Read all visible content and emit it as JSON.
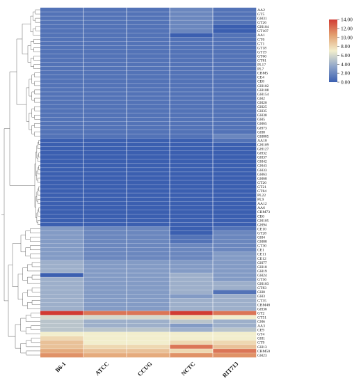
{
  "chart_data": {
    "type": "heatmap",
    "title": "",
    "xlabel": "",
    "ylabel": "",
    "columns": [
      "B6-1",
      "ATCC",
      "CCUG",
      "NCTC",
      "RIT713"
    ],
    "rows": [
      "AA2",
      "GT5",
      "GH31",
      "GT26",
      "GH104",
      "GT107",
      "AA1",
      "GT0",
      "GT1",
      "GT18",
      "GT19",
      "GT60",
      "GT81",
      "PL17",
      "PL7",
      "CBM5",
      "CE4",
      "CE8",
      "GH102",
      "GH108",
      "GH154",
      "GH2",
      "GH20",
      "GH25",
      "GH35",
      "GH38",
      "GH5",
      "GH65",
      "GH73",
      "GH8",
      "GH885",
      "AA10",
      "GH109",
      "GH127",
      "GH32",
      "GH37",
      "GH42",
      "GH43",
      "GH33",
      "GH63",
      "GH68",
      "GT20",
      "GT21",
      "GT84",
      "PL22",
      "PL9",
      "AA12",
      "AA6",
      "CBM73",
      "CE0",
      "GH105",
      "GH94",
      "CE10",
      "GT28",
      "GH4",
      "GH88",
      "GT30",
      "CE1",
      "CE11",
      "CE12",
      "GH77",
      "GH18",
      "GH19",
      "GH24",
      "GT56",
      "GH103",
      "GT83",
      "GH0",
      "GH3",
      "GT35",
      "CBM48",
      "GH36",
      "GT2",
      "GT51",
      "GH6",
      "AA3",
      "CE9",
      "GT4",
      "GH1",
      "GT9",
      "GH13",
      "CBM50",
      "GH23"
    ],
    "values": [
      [
        1,
        1,
        1,
        2,
        1
      ],
      [
        1,
        1,
        1,
        2,
        1
      ],
      [
        1,
        1,
        1,
        2,
        1
      ],
      [
        1,
        1,
        1,
        2,
        1
      ],
      [
        1,
        1,
        1,
        2,
        0
      ],
      [
        1,
        1,
        1,
        2,
        0
      ],
      [
        1,
        1,
        1,
        0,
        1
      ],
      [
        1,
        1,
        1,
        1,
        1
      ],
      [
        1,
        1,
        1,
        1,
        1
      ],
      [
        1,
        1,
        1,
        1,
        1
      ],
      [
        1,
        1,
        1,
        1,
        1
      ],
      [
        1,
        1,
        1,
        1,
        1
      ],
      [
        1,
        1,
        1,
        1,
        1
      ],
      [
        1,
        1,
        1,
        1,
        1
      ],
      [
        1,
        1,
        1,
        1,
        1
      ],
      [
        1,
        1,
        1,
        1,
        1
      ],
      [
        1,
        1,
        1,
        1,
        1
      ],
      [
        1,
        1,
        1,
        1,
        1
      ],
      [
        1,
        1,
        1,
        1,
        1
      ],
      [
        1,
        1,
        1,
        1,
        1
      ],
      [
        1,
        1,
        1,
        1,
        1
      ],
      [
        1,
        1,
        1,
        1,
        1
      ],
      [
        1,
        1,
        1,
        1,
        1
      ],
      [
        1,
        1,
        1,
        1,
        1
      ],
      [
        1,
        1,
        1,
        1,
        1
      ],
      [
        1,
        1,
        1,
        1,
        1
      ],
      [
        1,
        1,
        1,
        1,
        1
      ],
      [
        1,
        1,
        1,
        1,
        1
      ],
      [
        1,
        1,
        1,
        1,
        1
      ],
      [
        1,
        1,
        1,
        1,
        1
      ],
      [
        1,
        1,
        1,
        1,
        2
      ],
      [
        0,
        0,
        0,
        0,
        1
      ],
      [
        0,
        0,
        0,
        0,
        0
      ],
      [
        0,
        0,
        0,
        0,
        0
      ],
      [
        0,
        0,
        0,
        0,
        0
      ],
      [
        0,
        0,
        0,
        0,
        0
      ],
      [
        0,
        0,
        0,
        0,
        0
      ],
      [
        0,
        0,
        0,
        0,
        0
      ],
      [
        0,
        0,
        0,
        0,
        0
      ],
      [
        0,
        0,
        0,
        0,
        0
      ],
      [
        0,
        0,
        0,
        0,
        0
      ],
      [
        0,
        0,
        0,
        0,
        0
      ],
      [
        0,
        0,
        0,
        0,
        0
      ],
      [
        0,
        0,
        0,
        0,
        0
      ],
      [
        0,
        0,
        0,
        0,
        0
      ],
      [
        0,
        0,
        0,
        0,
        0
      ],
      [
        0,
        0,
        0,
        0,
        0
      ],
      [
        0,
        0,
        0,
        0,
        0
      ],
      [
        0,
        0,
        0,
        0,
        0
      ],
      [
        0,
        0,
        0,
        0,
        0
      ],
      [
        0,
        0,
        0,
        0,
        0
      ],
      [
        0,
        0,
        0,
        0,
        0
      ],
      [
        3,
        2,
        2,
        0,
        1
      ],
      [
        3,
        2,
        2,
        0,
        2
      ],
      [
        3,
        2,
        2,
        1,
        2
      ],
      [
        3,
        2,
        2,
        1,
        2
      ],
      [
        3,
        2,
        2,
        2,
        2
      ],
      [
        3,
        2,
        2,
        2,
        2
      ],
      [
        3,
        2,
        2,
        2,
        3
      ],
      [
        3,
        2,
        2,
        2,
        3
      ],
      [
        4,
        3,
        3,
        3,
        3
      ],
      [
        4,
        3,
        3,
        3,
        3
      ],
      [
        4,
        3,
        3,
        3,
        3
      ],
      [
        0,
        3,
        3,
        4,
        3
      ],
      [
        4,
        3,
        3,
        4,
        3
      ],
      [
        4,
        3,
        3,
        4,
        4
      ],
      [
        4,
        3,
        3,
        4,
        4
      ],
      [
        4,
        3,
        3,
        4,
        1
      ],
      [
        4,
        3,
        3,
        3,
        4
      ],
      [
        4,
        3,
        3,
        4,
        4
      ],
      [
        4,
        3,
        3,
        4,
        4
      ],
      [
        4,
        3,
        3,
        4,
        4
      ],
      [
        14,
        12,
        12,
        14,
        12
      ],
      [
        6,
        6,
        6,
        8,
        7
      ],
      [
        5,
        4,
        4,
        5,
        4
      ],
      [
        5,
        4,
        4,
        3,
        4
      ],
      [
        5,
        5,
        5,
        4,
        5
      ],
      [
        7,
        7,
        7,
        7,
        7
      ],
      [
        8,
        7,
        7,
        7,
        7
      ],
      [
        9,
        7,
        7,
        8,
        8
      ],
      [
        9,
        8,
        8,
        12,
        9
      ],
      [
        10,
        9,
        9,
        8,
        12
      ],
      [
        11,
        10,
        10,
        11,
        11
      ]
    ],
    "colorbar": {
      "ticks": [
        "14.00",
        "12.00",
        "10.00",
        "8.00",
        "6.00",
        "4.00",
        "2.00",
        "0.00"
      ],
      "min": 0,
      "max": 14,
      "colors": [
        "#3b5fb0",
        "#8fa5c9",
        "#f2eecd",
        "#e3a070",
        "#d13b33"
      ]
    }
  }
}
